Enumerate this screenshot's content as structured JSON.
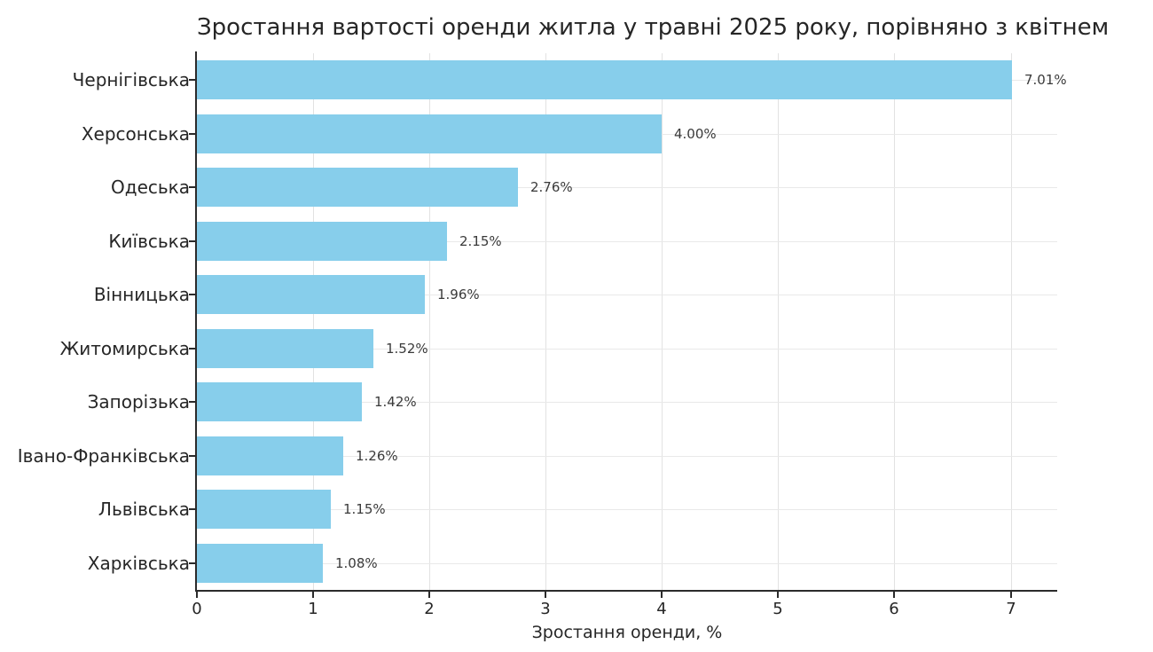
{
  "chart_data": {
    "type": "bar",
    "orientation": "horizontal",
    "title": "Зростання вартості оренди житла у травні 2025 року, порівняно з квітнем",
    "categories": [
      "Чернігівська",
      "Херсонська",
      "Одеська",
      "Київська",
      "Вінницька",
      "Житомирська",
      "Запорізька",
      "Івано-Франківська",
      "Львівська",
      "Харківська"
    ],
    "values": [
      7.01,
      4.0,
      2.76,
      2.15,
      1.96,
      1.52,
      1.42,
      1.26,
      1.15,
      1.08
    ],
    "value_labels": [
      "7.01%",
      "4.00%",
      "2.76%",
      "2.15%",
      "1.96%",
      "1.52%",
      "1.42%",
      "1.26%",
      "1.15%",
      "1.08%"
    ],
    "xlabel": "Зростання оренди, %",
    "x_ticks": [
      "0",
      "1",
      "2",
      "3",
      "4",
      "5",
      "6",
      "7"
    ],
    "xlim": [
      0,
      7.4
    ],
    "grid": "both",
    "legend": "none",
    "bar_color": "#87ceeb",
    "background_color": "#ffffff"
  }
}
